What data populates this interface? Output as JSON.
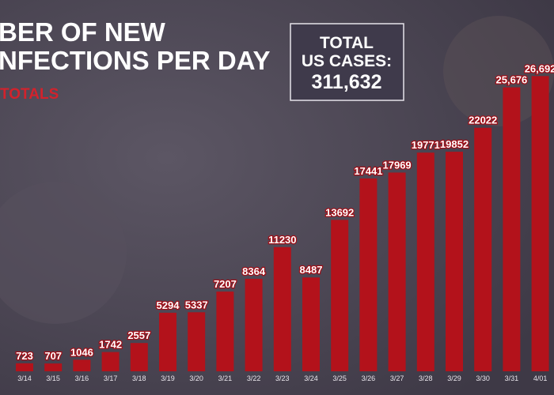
{
  "chart_data": {
    "type": "bar",
    "title_lines": [
      "BER OF NEW",
      "NFECTIONS PER DAY"
    ],
    "subtitle": "TOTALS",
    "total_box": {
      "line1": "TOTAL",
      "line2": "US CASES:",
      "value": "311,632"
    },
    "categories": [
      "3/14",
      "3/15",
      "3/16",
      "3/17",
      "3/18",
      "3/19",
      "3/20",
      "3/21",
      "3/22",
      "3/23",
      "3/24",
      "3/25",
      "3/26",
      "3/27",
      "3/28",
      "3/29",
      "3/30",
      "3/31",
      "4/01"
    ],
    "values": [
      723,
      707,
      1046,
      1742,
      2557,
      5294,
      5337,
      7207,
      8364,
      11230,
      8487,
      13692,
      17441,
      17969,
      19771,
      19852,
      22022,
      25676,
      26692
    ],
    "value_labels": [
      "723",
      "707",
      "1046",
      "1742",
      "2557",
      "5294",
      "5337",
      "7207",
      "8364",
      "11230",
      "8487",
      "13692",
      "17441",
      "17969",
      "19771",
      "19852",
      "22022",
      "25,676",
      "26,692"
    ],
    "color": "#b3121b",
    "ylim": [
      0,
      27000
    ]
  }
}
